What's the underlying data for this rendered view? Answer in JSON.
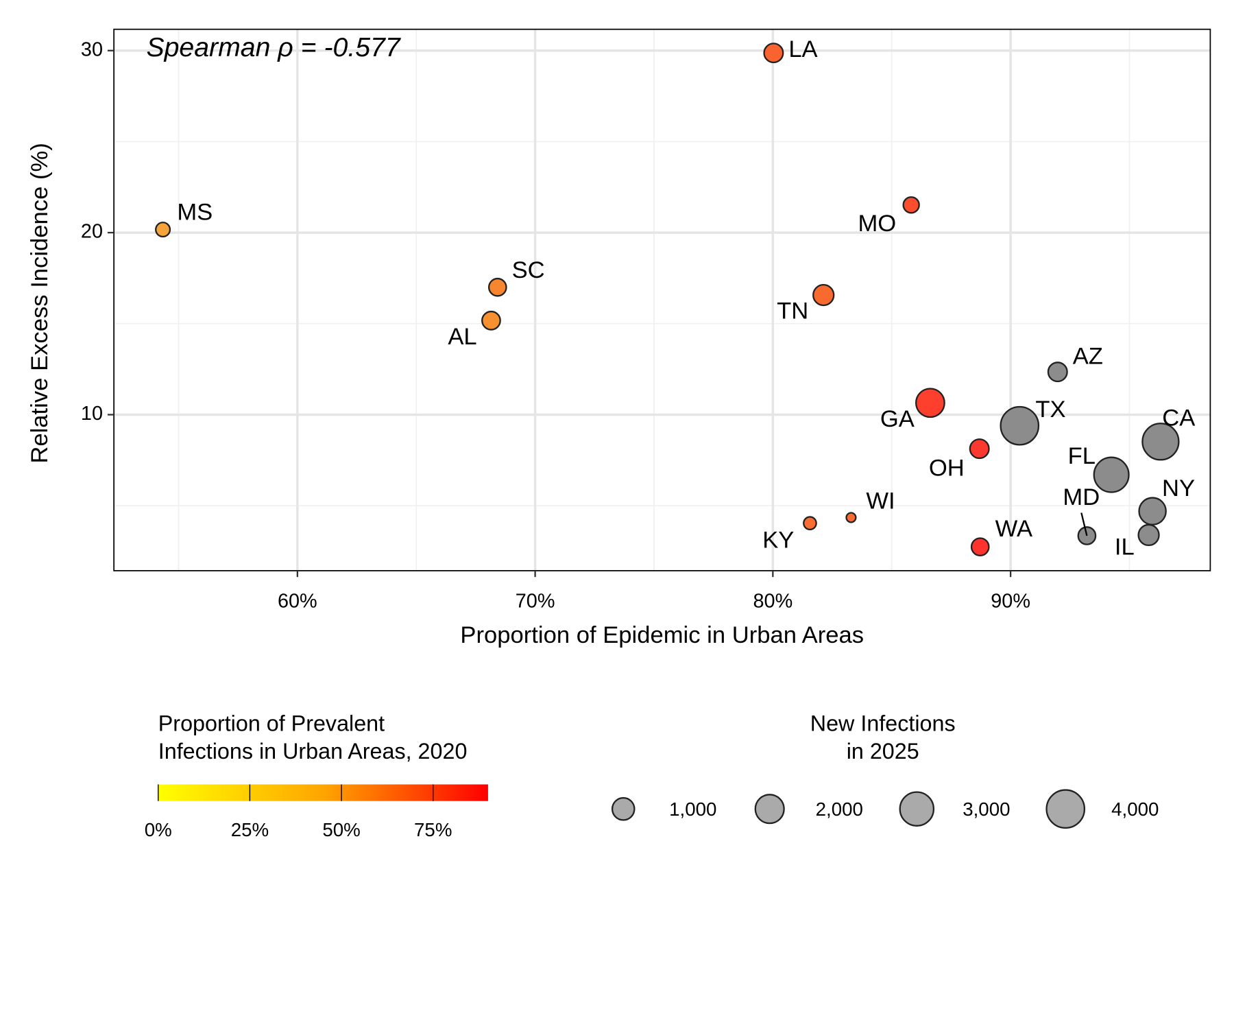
{
  "chart_data": {
    "type": "scatter",
    "annotation": "Spearman ρ = -0.577",
    "x_label": "Proportion of Epidemic in Urban Areas",
    "y_label": "Relative Excess Incidence (%)",
    "xlim": [
      52.28,
      98.4
    ],
    "ylim": [
      1.43,
      31.17
    ],
    "xticks": [
      {
        "value": 60,
        "label": "60%"
      },
      {
        "value": 70,
        "label": "70%"
      },
      {
        "value": 80,
        "label": "80%"
      },
      {
        "value": 90,
        "label": "90%"
      }
    ],
    "yticks": [
      10,
      20,
      30
    ],
    "xminor": [
      55,
      65,
      75,
      85,
      95
    ],
    "yminor": [
      5,
      15,
      25
    ],
    "grid": true,
    "labels": [
      "MS",
      "SC",
      "AL",
      "LA",
      "MO",
      "TN",
      "AZ",
      "GA",
      "TX",
      "CA",
      "OH",
      "FL",
      "NY",
      "MD",
      "IL",
      "WA",
      "KY",
      "WI"
    ],
    "x": [
      54.34,
      68.42,
      68.15,
      80.03,
      85.82,
      82.13,
      91.98,
      86.62,
      90.38,
      96.31,
      88.69,
      94.24,
      95.97,
      93.21,
      95.81,
      88.72,
      81.56,
      83.29
    ],
    "y": [
      20.17,
      17.0,
      15.17,
      29.87,
      21.52,
      16.57,
      12.35,
      10.65,
      9.39,
      8.52,
      8.13,
      6.7,
      4.7,
      3.35,
      3.39,
      2.74,
      4.04,
      4.35
    ],
    "sizes": [
      250,
      490,
      560,
      640,
      360,
      810,
      640,
      1960,
      4000,
      3600,
      640,
      3240,
      1690,
      490,
      810,
      490,
      160,
      40
    ],
    "colors": [
      "#F5A33A",
      "#F7862F",
      "#F7902F",
      "#F86330",
      "#FB4E2E",
      "#F96A2E",
      "#8C8C8C",
      "#FD3F2E",
      "#8C8C8C",
      "#8C8C8C",
      "#FD382E",
      "#8C8C8C",
      "#8C8C8C",
      "#8C8C8C",
      "#8C8C8C",
      "#FE332E",
      "#FA6E35",
      "#FA6A35"
    ],
    "color_legend": {
      "title": [
        "Proportion of Prevalent",
        "Infections in Urban Areas, 2020"
      ],
      "lim": [
        0,
        90
      ],
      "colors": [
        "#FFFF00",
        "#FFA500",
        "#FF0000"
      ],
      "ticks": [
        {
          "value": 0,
          "label": "0%"
        },
        {
          "value": 25,
          "label": "25%"
        },
        {
          "value": 50,
          "label": "50%"
        },
        {
          "value": 75,
          "label": "75%"
        }
      ]
    },
    "size_legend": {
      "title": [
        "New Infections",
        "in 2025"
      ],
      "values": [
        {
          "value": 1000,
          "label": "1,000"
        },
        {
          "value": 2000,
          "label": "2,000"
        },
        {
          "value": 3000,
          "label": "3,000"
        },
        {
          "value": 4000,
          "label": "4,000"
        }
      ]
    }
  }
}
